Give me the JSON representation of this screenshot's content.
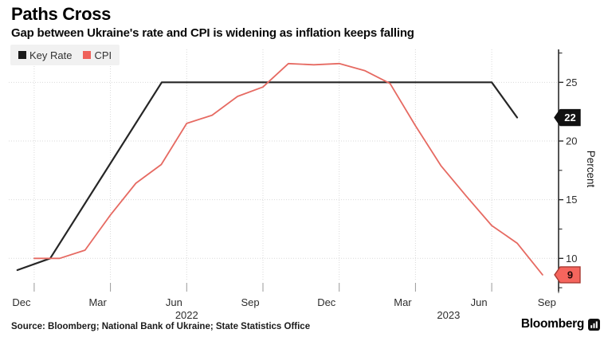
{
  "header": {
    "title": "Paths Cross",
    "subtitle": "Gap between Ukraine's rate and CPI is widening as inflation keeps falling"
  },
  "legend": {
    "items": [
      {
        "label": "Key Rate",
        "color": "#1a1a1a"
      },
      {
        "label": "CPI",
        "color": "#ef615a"
      }
    ]
  },
  "footer": {
    "source": "Source: Bloomberg; National Bank of Ukraine; State Statistics Office",
    "brand": "Bloomberg"
  },
  "chart_data": {
    "type": "line",
    "title": "Paths Cross",
    "subtitle": "Gap between Ukraine's rate and CPI is widening as inflation keeps falling",
    "x_unit": "months since 1 Dec 2021",
    "x_range": {
      "start": "Dec 2021",
      "end": "Sep 2023"
    },
    "x_axis": {
      "ticks": [
        {
          "label": "Dec",
          "f": 0.5
        },
        {
          "label": "Mar",
          "f": 3.5
        },
        {
          "label": "Jun",
          "f": 6.5
        },
        {
          "label": "Sep",
          "f": 9.5
        },
        {
          "label": "Dec",
          "f": 12.5
        },
        {
          "label": "Mar",
          "f": 15.5
        },
        {
          "label": "Jun",
          "f": 18.5
        },
        {
          "label": "Sep",
          "f": 21.17
        }
      ],
      "year_labels": [
        {
          "label": "2022",
          "f": 7.0
        },
        {
          "label": "2023",
          "f": 17.3
        }
      ],
      "quarter_gridlines_f": [
        1,
        4,
        7,
        10,
        13,
        16,
        19
      ]
    },
    "y_axis": {
      "label": "Percent",
      "side": "right",
      "major_ticks": [
        10,
        15,
        20,
        25
      ],
      "minor_ticks": [
        7.5,
        12.5,
        17.5,
        22.5,
        27.5
      ],
      "range": [
        7.2,
        27.8
      ],
      "grid": "dotted"
    },
    "series": [
      {
        "name": "Key Rate",
        "color": "#262626",
        "width": 2.2,
        "points": [
          [
            0.34,
            9
          ],
          [
            1.63,
            10
          ],
          [
            6.02,
            25
          ],
          [
            19,
            25
          ],
          [
            20,
            22
          ]
        ],
        "end_label": {
          "text": "22",
          "bg": "#111111",
          "border": "#111111",
          "text_color": "#ffffff"
        }
      },
      {
        "name": "CPI",
        "color": "#e66a62",
        "width": 1.8,
        "points": [
          [
            1,
            10.0
          ],
          [
            2,
            10.0
          ],
          [
            3,
            10.7
          ],
          [
            4,
            13.7
          ],
          [
            5,
            16.4
          ],
          [
            6,
            18.0
          ],
          [
            7,
            21.5
          ],
          [
            8,
            22.2
          ],
          [
            9,
            23.8
          ],
          [
            10,
            24.6
          ],
          [
            11,
            26.6
          ],
          [
            12,
            26.5
          ],
          [
            13,
            26.6
          ],
          [
            14,
            26.0
          ],
          [
            15,
            24.9
          ],
          [
            16,
            21.3
          ],
          [
            17,
            17.9
          ],
          [
            18,
            15.3
          ],
          [
            19,
            12.8
          ],
          [
            20,
            11.3
          ],
          [
            21,
            8.6
          ]
        ],
        "end_label": {
          "text": "9",
          "bg": "#f5655d",
          "border": "#a83a33",
          "text_color": "#230a0a"
        }
      }
    ]
  }
}
